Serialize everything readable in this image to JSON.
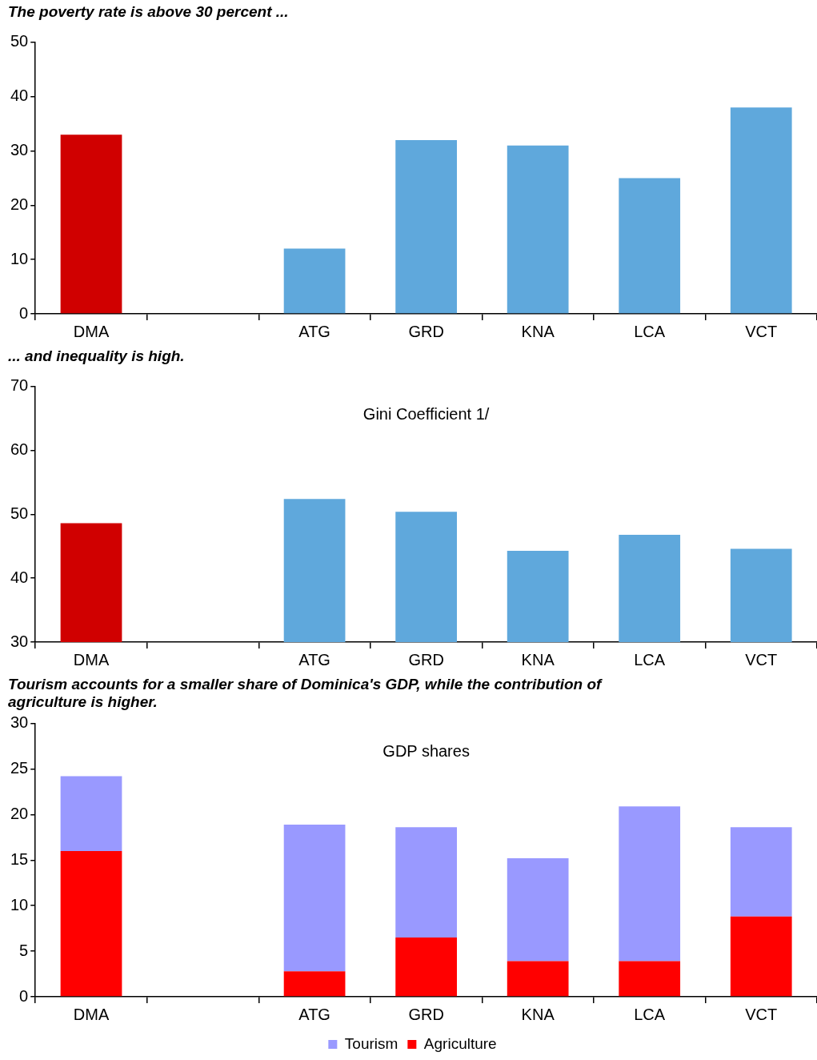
{
  "chart_data": [
    {
      "type": "bar",
      "title": "The poverty rate is above 30 percent ...",
      "categories": [
        "DMA",
        null,
        "ATG",
        "GRD",
        "KNA",
        "LCA",
        "VCT"
      ],
      "values": [
        33,
        null,
        12,
        32,
        31,
        25,
        38
      ],
      "colors": [
        "#d00000",
        "#5fa8dc",
        "#5fa8dc",
        "#5fa8dc",
        "#5fa8dc",
        "#5fa8dc",
        "#5fa8dc"
      ],
      "ylim": [
        0,
        50
      ],
      "yticks": [
        0,
        10,
        20,
        30,
        40,
        50
      ],
      "grid": false,
      "legend": false
    },
    {
      "type": "bar",
      "title": "... and inequality is high.",
      "subtitle": "Gini Coefficient 1/",
      "categories": [
        "DMA",
        null,
        "ATG",
        "GRD",
        "KNA",
        "LCA",
        "VCT"
      ],
      "values": [
        48.6,
        null,
        52.4,
        50.4,
        44.3,
        46.8,
        44.6
      ],
      "colors": [
        "#d00000",
        "#5fa8dc",
        "#5fa8dc",
        "#5fa8dc",
        "#5fa8dc",
        "#5fa8dc",
        "#5fa8dc"
      ],
      "ylim": [
        30,
        70
      ],
      "yticks": [
        30,
        40,
        50,
        60,
        70
      ],
      "grid": false,
      "legend": false
    },
    {
      "type": "bar",
      "title": "Tourism accounts for a smaller share of Dominica's GDP, while the contribution of agriculture is higher.",
      "subtitle": "GDP shares",
      "categories": [
        "DMA",
        null,
        "ATG",
        "GRD",
        "KNA",
        "LCA",
        "VCT"
      ],
      "stacked": true,
      "series": [
        {
          "name": "Agriculture",
          "color": "#ff0000",
          "values": [
            16.0,
            null,
            2.8,
            6.5,
            3.9,
            3.9,
            8.8
          ]
        },
        {
          "name": "Tourism",
          "color": "#9999ff",
          "values": [
            8.2,
            null,
            16.1,
            12.1,
            11.3,
            17.0,
            9.8
          ]
        }
      ],
      "ylim": [
        0,
        30
      ],
      "yticks": [
        0,
        5,
        10,
        15,
        20,
        25,
        30
      ],
      "grid": false,
      "legend": "bottom"
    }
  ]
}
